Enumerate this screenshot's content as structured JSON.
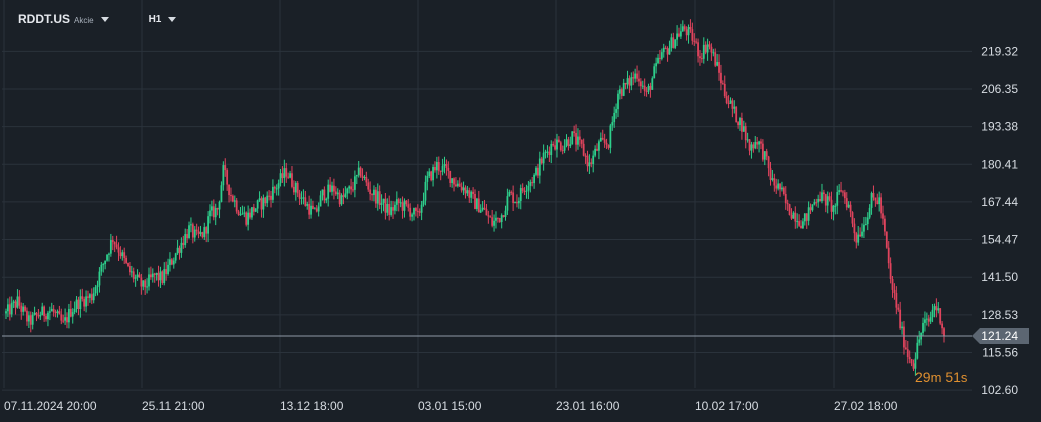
{
  "header": {
    "symbol": "RDDT.US",
    "symbol_type": "Akcie",
    "timeframe": "H1"
  },
  "countdown": {
    "minutes": "29",
    "minutes_unit": "m",
    "seconds": "51",
    "seconds_unit": "s"
  },
  "colors": {
    "up": "#2ecf8c",
    "down": "#e0445d",
    "background": "#1a2027",
    "grid": "#2a323b",
    "price_line": "#8f99a6",
    "price_tag": "#5c6672",
    "countdown": "#e09030"
  },
  "chart_data": {
    "type": "candlestick",
    "title": "",
    "xlabel": "",
    "ylabel": "",
    "grid": true,
    "current_price": 121.24,
    "current_price_label": "121.24",
    "ylim": [
      98.5,
      237
    ],
    "y_ticks": [
      102.6,
      115.56,
      128.53,
      141.5,
      154.47,
      167.44,
      180.41,
      193.38,
      206.35,
      219.32
    ],
    "y_tick_labels": [
      "102.60",
      "115.56",
      "128.53",
      "141.50",
      "154.47",
      "167.44",
      "180.41",
      "193.38",
      "206.35",
      "219.32"
    ],
    "x_tick_labels": [
      "07.11.2024  20:00",
      "25.11  21:00",
      "13.12  18:00",
      "03.01  15:00",
      "23.01  16:00",
      "10.02  17:00",
      "27.02  18:00"
    ],
    "keypoints": [
      [
        0,
        129
      ],
      [
        6,
        133
      ],
      [
        12,
        126
      ],
      [
        18,
        129
      ],
      [
        24,
        130
      ],
      [
        30,
        125
      ],
      [
        34,
        130
      ],
      [
        38,
        133
      ],
      [
        45,
        135
      ],
      [
        52,
        148
      ],
      [
        56,
        155
      ],
      [
        60,
        150
      ],
      [
        64,
        144
      ],
      [
        68,
        141
      ],
      [
        72,
        138
      ],
      [
        78,
        142
      ],
      [
        82,
        141
      ],
      [
        90,
        151
      ],
      [
        96,
        158
      ],
      [
        100,
        155
      ],
      [
        104,
        157
      ],
      [
        107,
        163
      ],
      [
        111,
        165
      ],
      [
        114,
        178
      ],
      [
        118,
        170
      ],
      [
        122,
        165
      ],
      [
        126,
        162
      ],
      [
        130,
        165
      ],
      [
        136,
        168
      ],
      [
        142,
        173
      ],
      [
        147,
        178
      ],
      [
        152,
        172
      ],
      [
        157,
        167
      ],
      [
        162,
        163
      ],
      [
        166,
        170
      ],
      [
        172,
        172
      ],
      [
        176,
        168
      ],
      [
        182,
        173
      ],
      [
        186,
        178
      ],
      [
        190,
        172
      ],
      [
        196,
        168
      ],
      [
        201,
        164
      ],
      [
        206,
        167
      ],
      [
        211,
        165
      ],
      [
        216,
        162
      ],
      [
        221,
        175
      ],
      [
        226,
        180
      ],
      [
        231,
        178
      ],
      [
        236,
        174
      ],
      [
        241,
        172
      ],
      [
        246,
        167
      ],
      [
        250,
        165
      ],
      [
        255,
        160
      ],
      [
        260,
        163
      ],
      [
        264,
        170
      ],
      [
        268,
        168
      ],
      [
        272,
        173
      ],
      [
        277,
        176
      ],
      [
        282,
        183
      ],
      [
        287,
        188
      ],
      [
        292,
        187
      ],
      [
        297,
        190
      ],
      [
        302,
        186
      ],
      [
        306,
        180
      ],
      [
        311,
        187
      ],
      [
        316,
        188
      ],
      [
        321,
        205
      ],
      [
        326,
        208
      ],
      [
        331,
        212
      ],
      [
        336,
        204
      ],
      [
        340,
        212
      ],
      [
        344,
        218
      ],
      [
        348,
        221
      ],
      [
        352,
        225
      ],
      [
        356,
        227
      ],
      [
        360,
        224
      ],
      [
        364,
        218
      ],
      [
        368,
        222
      ],
      [
        372,
        216
      ],
      [
        377,
        205
      ],
      [
        382,
        198
      ],
      [
        386,
        194
      ],
      [
        390,
        186
      ],
      [
        394,
        189
      ],
      [
        398,
        183
      ],
      [
        402,
        174
      ],
      [
        406,
        172
      ],
      [
        410,
        165
      ],
      [
        414,
        163
      ],
      [
        418,
        160
      ],
      [
        422,
        165
      ],
      [
        426,
        170
      ],
      [
        430,
        168
      ],
      [
        434,
        165
      ],
      [
        438,
        172
      ],
      [
        442,
        166
      ],
      [
        446,
        155
      ],
      [
        450,
        160
      ],
      [
        454,
        168
      ],
      [
        458,
        168
      ],
      [
        461,
        156
      ],
      [
        464,
        140
      ],
      [
        467,
        132
      ],
      [
        470,
        122
      ],
      [
        473,
        115
      ],
      [
        476,
        112
      ],
      [
        479,
        120
      ],
      [
        481,
        125
      ],
      [
        484,
        126
      ],
      [
        487,
        132
      ],
      [
        490,
        128
      ],
      [
        492,
        122
      ]
    ],
    "note_values": "Hourly OHLC candles; prices read approximately from the axis."
  }
}
